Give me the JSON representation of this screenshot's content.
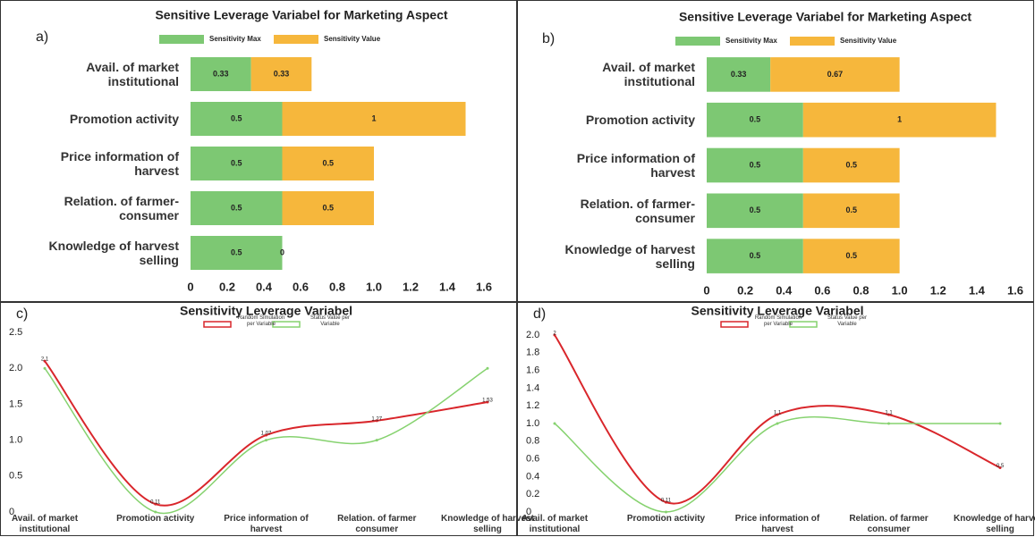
{
  "chart_data": [
    {
      "type": "hbar",
      "panel_label": "a)",
      "title": "Sensitive Leverage Variabel for Marketing Aspect",
      "categories": [
        "Avail. of market institutional",
        "Promotion activity",
        "Price information of harvest",
        "Relation. of farmer-consumer",
        "Knowledge of harvest selling"
      ],
      "series": [
        {
          "name": "Sensitivity Max",
          "color": "#7dc873",
          "values": [
            0.33,
            0.5,
            0.5,
            0.5,
            0.5
          ]
        },
        {
          "name": "Sensitivity Value",
          "color": "#f6b73c",
          "values": [
            0.33,
            1,
            0.5,
            0.5,
            0
          ]
        }
      ],
      "xlim": [
        0,
        1.6
      ],
      "xticks": [
        0,
        0.2,
        0.4,
        0.6,
        0.8,
        {
          "value": 1,
          "label": "1.0"
        },
        1.2,
        1.4,
        1.6
      ],
      "grid": false
    },
    {
      "type": "hbar",
      "panel_label": "b)",
      "title": "Sensitive Leverage Variabel for Marketing Aspect",
      "categories": [
        "Avail. of market institutional",
        "Promotion activity",
        "Price information of harvest",
        "Relation. of farmer-consumer",
        "Knowledge of harvest selling"
      ],
      "series": [
        {
          "name": "Sensitivity Max",
          "color": "#7dc873",
          "values": [
            0.33,
            0.5,
            0.5,
            0.5,
            0.5
          ]
        },
        {
          "name": "Sensitivity Value",
          "color": "#f6b73c",
          "values": [
            0.67,
            1,
            0.5,
            0.5,
            0.5
          ]
        }
      ],
      "xlim": [
        0,
        1.6
      ],
      "xticks": [
        0,
        0.2,
        0.4,
        0.6,
        0.8,
        {
          "value": 1,
          "label": "1.0"
        },
        1.2,
        1.4,
        1.6
      ],
      "grid": false
    },
    {
      "type": "line",
      "panel_label": "c)",
      "title": "Sensitivity Leverage Variabel",
      "categories": [
        "Avail. of market institutional",
        "Promotion activity",
        "Price information of harvest",
        "Relation. of farmer consumer",
        "Knowledge of harvest selling"
      ],
      "series": [
        {
          "name": "Random Simulation per Variable",
          "color": "#d9262b",
          "values": [
            2.1,
            0.11,
            1.07,
            1.27,
            1.53
          ]
        },
        {
          "name": "Status Value per Variable",
          "color": "#86d26f",
          "values": [
            2,
            0,
            1,
            1,
            2
          ]
        }
      ],
      "ylim": [
        0,
        2.5
      ],
      "yticks": [
        0,
        0.5,
        {
          "value": 1,
          "label": "1.0"
        },
        1.5,
        {
          "value": 2,
          "label": "2.0"
        },
        2.5
      ],
      "grid": false
    },
    {
      "type": "line",
      "panel_label": "d)",
      "title": "Sensitivity Leverage Variabel",
      "categories": [
        "Avail. of market institutional",
        "Promotion activity",
        "Price information of harvest",
        "Relation. of farmer consumer",
        "Knowledge of harvest selling"
      ],
      "series": [
        {
          "name": "Random Simulation per Variable",
          "color": "#d9262b",
          "values": [
            2,
            0.11,
            1.1,
            1.1,
            0.5
          ]
        },
        {
          "name": "Status Value per Variable",
          "color": "#86d26f",
          "values": [
            1,
            0,
            1,
            1,
            1
          ]
        }
      ],
      "ylim": [
        0,
        2
      ],
      "yticks": [
        0,
        0.2,
        0.4,
        0.6,
        0.8,
        {
          "value": 1,
          "label": "1.0"
        },
        1.2,
        1.4,
        1.6,
        1.8,
        {
          "value": 2,
          "label": "2.0"
        }
      ],
      "grid": false
    }
  ]
}
